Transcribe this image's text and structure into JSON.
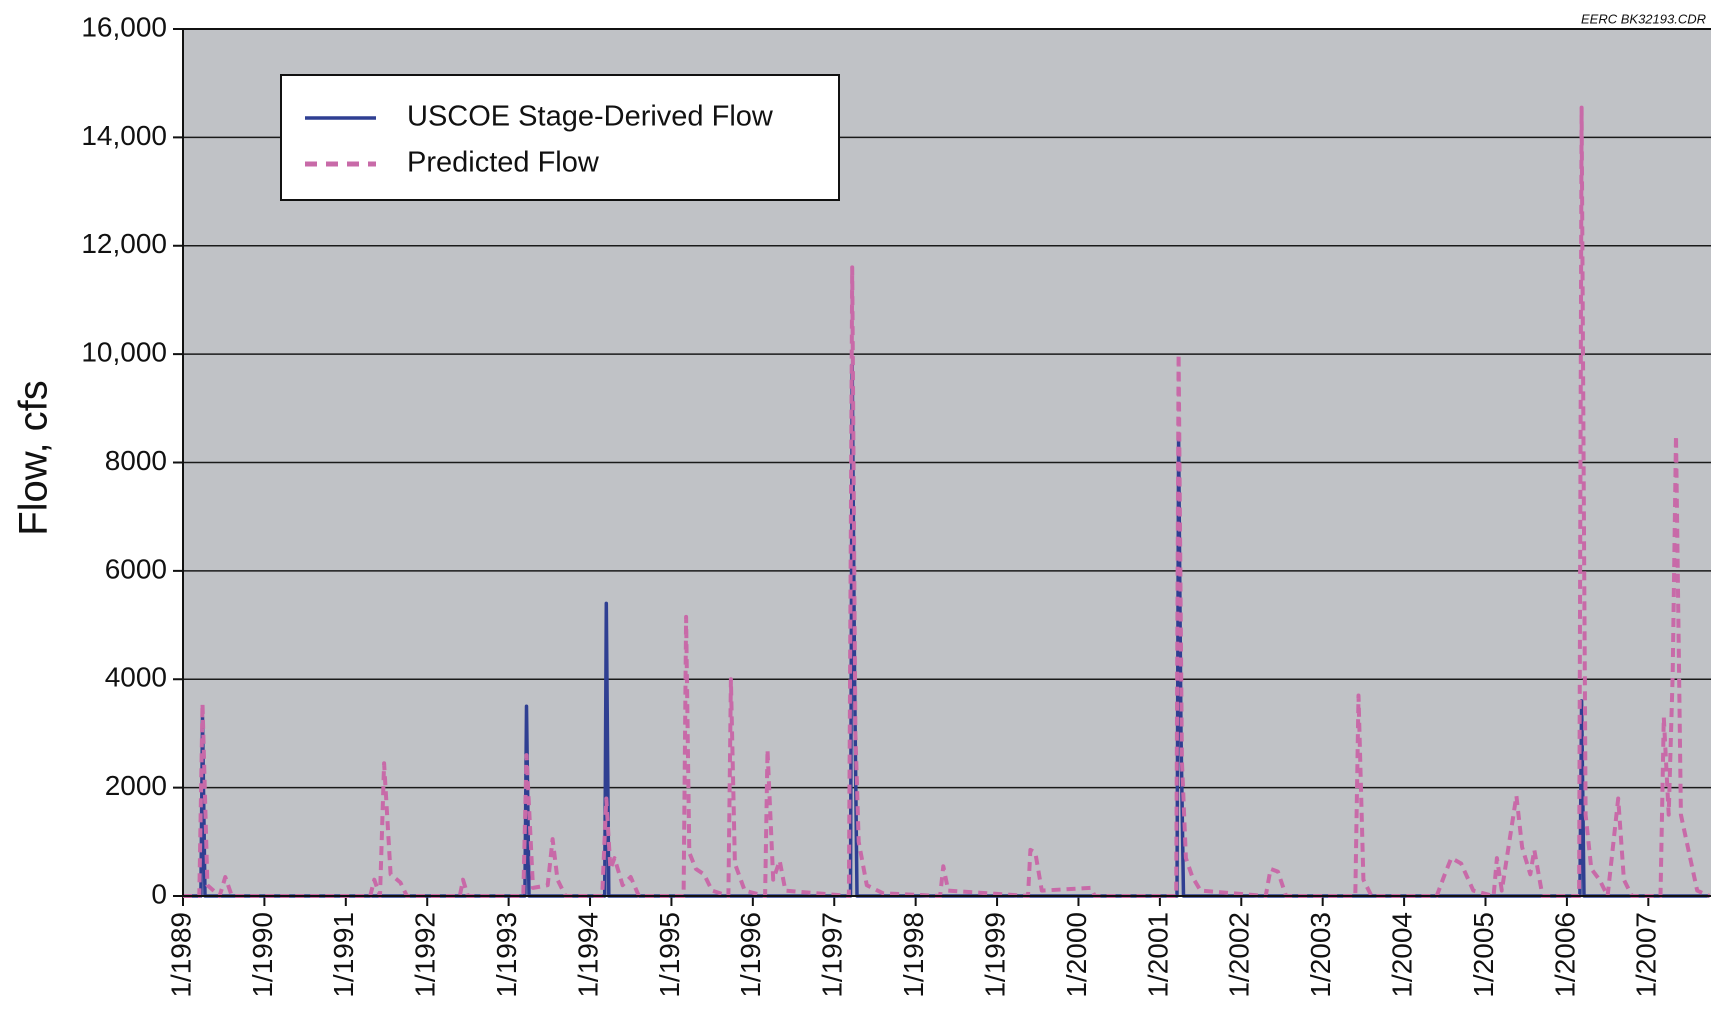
{
  "chart_data": {
    "type": "line",
    "y_label": "Flow, cfs",
    "note": "EERC BK32193.CDR",
    "xlim": [
      1989,
      2007.77
    ],
    "xticks": [
      {
        "value": 1989,
        "label": "1/1989"
      },
      {
        "value": 1990,
        "label": "1/1990"
      },
      {
        "value": 1991,
        "label": "1/1991"
      },
      {
        "value": 1992,
        "label": "1/1992"
      },
      {
        "value": 1993,
        "label": "1/1993"
      },
      {
        "value": 1994,
        "label": "1/1994"
      },
      {
        "value": 1995,
        "label": "1/1995"
      },
      {
        "value": 1996,
        "label": "1/1996"
      },
      {
        "value": 1997,
        "label": "1/1997"
      },
      {
        "value": 1998,
        "label": "1/1998"
      },
      {
        "value": 1999,
        "label": "1/1999"
      },
      {
        "value": 2000,
        "label": "1/2000"
      },
      {
        "value": 2001,
        "label": "1/2001"
      },
      {
        "value": 2002,
        "label": "1/2002"
      },
      {
        "value": 2003,
        "label": "1/2003"
      },
      {
        "value": 2004,
        "label": "1/2004"
      },
      {
        "value": 2005,
        "label": "1/2005"
      },
      {
        "value": 2006,
        "label": "1/2006"
      },
      {
        "value": 2007,
        "label": "1/2007"
      }
    ],
    "ylim": [
      0,
      16000
    ],
    "yticks": [
      0,
      2000,
      4000,
      6000,
      8000,
      {
        "value": 10000,
        "label": "10,000"
      },
      {
        "value": 12000,
        "label": "12,000"
      },
      {
        "value": 14000,
        "label": "14,000"
      },
      {
        "value": 16000,
        "label": "16,000"
      }
    ],
    "grid": true,
    "legend": "upper left",
    "series": [
      {
        "name": "USCOE Stage-Derived Flow",
        "color": "#2f3f92",
        "dash": false,
        "x": [
          1989,
          1989.22,
          1989.24,
          1989.27,
          1993.2,
          1993.22,
          1993.25,
          1994.18,
          1994.2,
          1994.23,
          1997.2,
          1997.22,
          1997.25,
          1997.28,
          2001.21,
          2001.23,
          2001.26,
          2001.29,
          2006.16,
          2006.18,
          2006.21,
          2007.75
        ],
        "values": [
          0,
          0,
          3300,
          0,
          0,
          3500,
          0,
          0,
          5400,
          0,
          0,
          9800,
          4000,
          0,
          0,
          8500,
          3000,
          0,
          0,
          3600,
          0,
          0
        ]
      },
      {
        "name": "Predicted Flow",
        "color": "#c86aa8",
        "dash": true,
        "x": [
          1989.0,
          1989.2,
          1989.24,
          1989.3,
          1989.45,
          1989.52,
          1989.6,
          1991.3,
          1991.35,
          1991.42,
          1991.47,
          1991.55,
          1991.67,
          1991.75,
          1992.4,
          1992.44,
          1992.5,
          1993.18,
          1993.22,
          1993.3,
          1993.48,
          1993.54,
          1993.6,
          1993.7,
          1994.15,
          1994.2,
          1994.25,
          1994.3,
          1994.4,
          1994.5,
          1994.6,
          1995.15,
          1995.18,
          1995.22,
          1995.3,
          1995.4,
          1995.5,
          1995.7,
          1995.73,
          1995.78,
          1995.9,
          1996.15,
          1996.18,
          1996.25,
          1996.33,
          1996.4,
          1997.18,
          1997.22,
          1997.26,
          1997.3,
          1997.4,
          1997.6,
          1998.3,
          1998.34,
          1998.4,
          1999.38,
          1999.41,
          1999.47,
          1999.55,
          2000.15,
          2000.2,
          2001.2,
          2001.23,
          2001.27,
          2001.32,
          2001.4,
          2001.5,
          2002.3,
          2002.36,
          2002.45,
          2002.55,
          2003.4,
          2003.44,
          2003.5,
          2003.6,
          2004.4,
          2004.5,
          2004.58,
          2004.7,
          2004.85,
          2005.1,
          2005.14,
          2005.2,
          2005.38,
          2005.45,
          2005.55,
          2005.6,
          2005.7,
          2006.15,
          2006.18,
          2006.23,
          2006.3,
          2006.4,
          2006.5,
          2006.63,
          2006.7,
          2006.8,
          2007.15,
          2007.19,
          2007.25,
          2007.3,
          2007.34,
          2007.4,
          2007.5,
          2007.6,
          2007.75
        ],
        "values": [
          0,
          0,
          3550,
          200,
          0,
          350,
          0,
          0,
          300,
          0,
          2450,
          400,
          250,
          0,
          0,
          300,
          0,
          0,
          2600,
          150,
          200,
          1050,
          300,
          0,
          0,
          1800,
          500,
          700,
          200,
          350,
          0,
          0,
          5150,
          800,
          500,
          400,
          100,
          0,
          4000,
          600,
          100,
          0,
          2700,
          300,
          650,
          100,
          0,
          11600,
          3000,
          1000,
          200,
          50,
          0,
          550,
          100,
          0,
          850,
          800,
          100,
          150,
          0,
          0,
          10000,
          2500,
          700,
          350,
          100,
          0,
          500,
          450,
          0,
          0,
          3700,
          300,
          0,
          0,
          400,
          700,
          600,
          100,
          0,
          700,
          100,
          1850,
          900,
          400,
          850,
          0,
          0,
          14550,
          1500,
          500,
          300,
          0,
          1800,
          300,
          0,
          0,
          3300,
          1500,
          4100,
          8500,
          1500,
          800,
          100,
          0
        ]
      }
    ]
  }
}
